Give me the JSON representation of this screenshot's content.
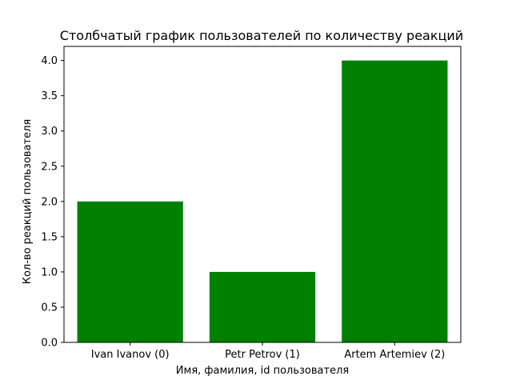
{
  "chart_data": {
    "type": "bar",
    "title": "Столбчатый график пользователей по количеству реакций",
    "xlabel": "Имя, фамилия, id пользователя",
    "ylabel": "Кол-во реакций пользователя",
    "categories": [
      "Ivan Ivanov (0)",
      "Petr Petrov (1)",
      "Artem Artemiev (2)"
    ],
    "values": [
      2,
      1,
      4
    ],
    "ylim": [
      0,
      4.2
    ],
    "yticks": [
      "0.0",
      "0.5",
      "1.0",
      "1.5",
      "2.0",
      "2.5",
      "3.0",
      "3.5",
      "4.0"
    ],
    "bar_color": "#008000",
    "grid": false,
    "legend": "none"
  }
}
